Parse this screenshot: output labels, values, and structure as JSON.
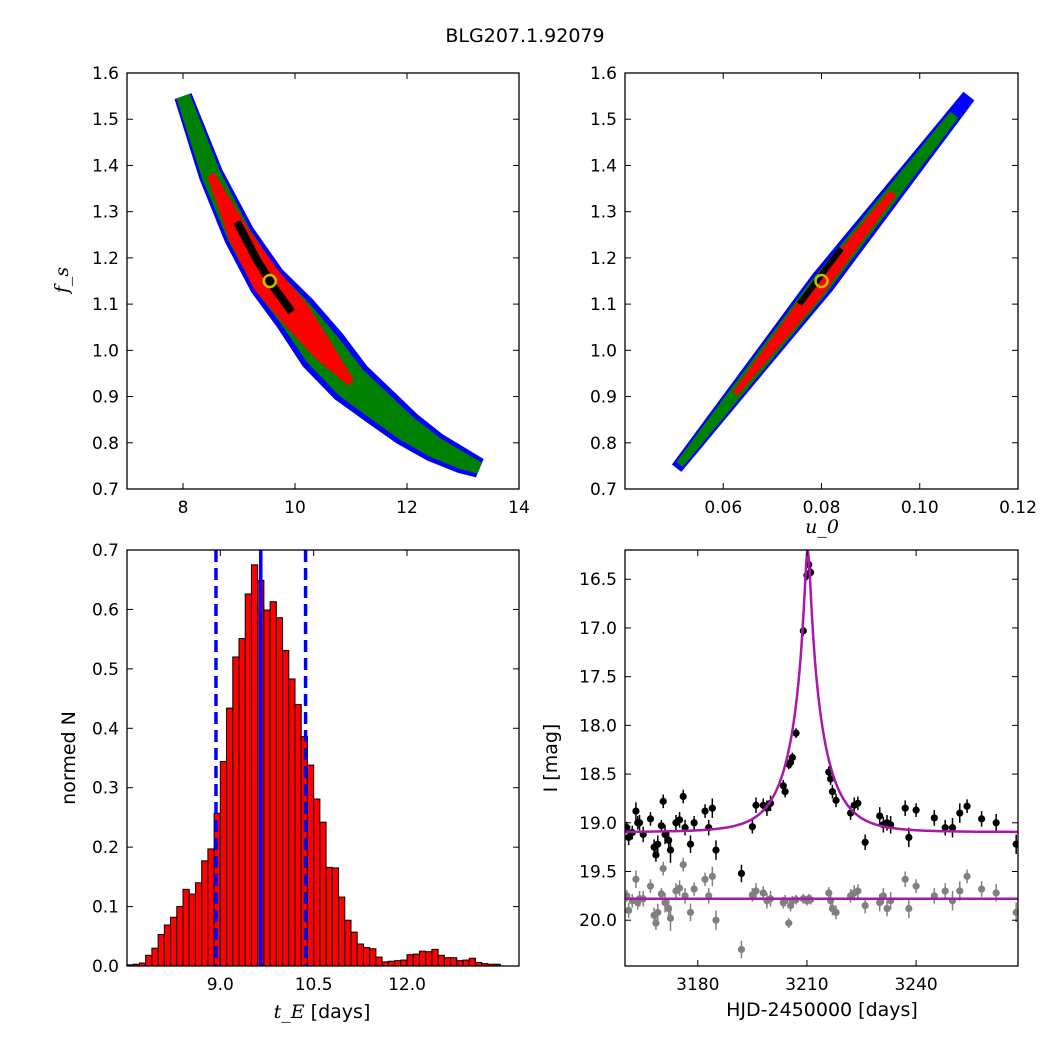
{
  "figure": {
    "title": "BLG207.1.92079"
  },
  "colors": {
    "outer": "#0000ff",
    "mid": "#008000",
    "inner": "#ff0000",
    "core": "#000000",
    "marker": "#bfbf00",
    "bar": "#ff0000",
    "line": "#0000ff",
    "model": "#aa18aa",
    "primary_pts": "#000000",
    "secondary_pts": "#808080"
  },
  "chart_data": [
    {
      "type": "heatmap",
      "name": "posterior tE vs fs",
      "xlabel": "",
      "ylabel": "f_s",
      "xlim": [
        7,
        14
      ],
      "ylim": [
        0.7,
        1.6
      ],
      "xticks": [
        8,
        10,
        12,
        14
      ],
      "yticks": [
        0.7,
        0.8,
        0.9,
        1.0,
        1.1,
        1.2,
        1.3,
        1.4,
        1.5,
        1.6
      ],
      "ytick_labels": [
        "0.7",
        "0.8",
        "0.9",
        "1.0",
        "1.1",
        "1.2",
        "1.3",
        "1.4",
        "1.5",
        "1.6"
      ],
      "ridge": [
        [
          8.0,
          1.55
        ],
        [
          8.5,
          1.38
        ],
        [
          9.0,
          1.25
        ],
        [
          9.5,
          1.15
        ],
        [
          10.0,
          1.08
        ],
        [
          10.5,
          1.0
        ],
        [
          11.0,
          0.93
        ],
        [
          11.5,
          0.88
        ],
        [
          12.0,
          0.83
        ],
        [
          12.5,
          0.79
        ],
        [
          13.0,
          0.76
        ],
        [
          13.3,
          0.745
        ]
      ],
      "best_fit": [
        9.55,
        1.15
      ]
    },
    {
      "type": "heatmap",
      "name": "posterior u0 vs fs",
      "xlabel": "u_0",
      "ylabel": "",
      "xlim": [
        0.04,
        0.12
      ],
      "ylim": [
        0.7,
        1.6
      ],
      "xticks": [
        0.06,
        0.08,
        0.1,
        0.12
      ],
      "xtick_labels": [
        "0.06",
        "0.08",
        "0.10",
        "0.12"
      ],
      "yticks": [
        0.7,
        0.8,
        0.9,
        1.0,
        1.1,
        1.2,
        1.3,
        1.4,
        1.5,
        1.6
      ],
      "ytick_labels": [
        "0.7",
        "0.8",
        "0.9",
        "1.0",
        "1.1",
        "1.2",
        "1.3",
        "1.4",
        "1.5",
        "1.6"
      ],
      "ridge": [
        [
          0.0505,
          0.745
        ],
        [
          0.11,
          1.55
        ]
      ],
      "best_fit": [
        0.08,
        1.15
      ]
    },
    {
      "type": "bar",
      "name": "tE histogram",
      "xlabel": "t_E",
      "xlabel_suffix": " [days]",
      "ylabel": "normed N",
      "xlim": [
        7.5,
        13.8
      ],
      "ylim": [
        0,
        0.7
      ],
      "xticks": [
        9.0,
        10.5,
        12.0
      ],
      "xtick_labels": [
        "9.0",
        "10.5",
        "12.0"
      ],
      "yticks": [
        0.0,
        0.1,
        0.2,
        0.3,
        0.4,
        0.5,
        0.6,
        0.7
      ],
      "ytick_labels": [
        "0.0",
        "0.1",
        "0.2",
        "0.3",
        "0.4",
        "0.5",
        "0.6",
        "0.7"
      ],
      "bin_start": 7.5,
      "bin_width": 0.1,
      "values": [
        0.002,
        0.003,
        0.005,
        0.018,
        0.03,
        0.053,
        0.069,
        0.082,
        0.1,
        0.129,
        0.121,
        0.14,
        0.177,
        0.197,
        0.257,
        0.344,
        0.434,
        0.52,
        0.551,
        0.626,
        0.675,
        0.649,
        0.599,
        0.613,
        0.586,
        0.531,
        0.483,
        0.44,
        0.386,
        0.338,
        0.281,
        0.242,
        0.166,
        0.165,
        0.116,
        0.077,
        0.057,
        0.037,
        0.031,
        0.029,
        0.015,
        0.007,
        0.008,
        0.009,
        0.01,
        0.019,
        0.02,
        0.025,
        0.024,
        0.028,
        0.018,
        0.014,
        0.014,
        0.009,
        0.01,
        0.013,
        0.006,
        0.004,
        0.003,
        0.003
      ],
      "vlines": [
        {
          "x": 8.93,
          "style": "dashed"
        },
        {
          "x": 9.65,
          "style": "solid"
        },
        {
          "x": 10.37,
          "style": "dashed"
        }
      ]
    },
    {
      "type": "scatter",
      "name": "light curve",
      "xlabel": "HJD-2450000 [days]",
      "ylabel": "I [mag]",
      "xlim": [
        3160,
        3268
      ],
      "ylim": [
        20.47,
        16.2
      ],
      "xticks": [
        3180,
        3210,
        3240
      ],
      "xtick_labels": [
        "3180",
        "3210",
        "3240"
      ],
      "yticks": [
        16.5,
        17.0,
        17.5,
        18.0,
        18.5,
        19.0,
        19.5,
        20.0
      ],
      "ytick_labels": [
        "16.5",
        "17.0",
        "17.5",
        "18.0",
        "18.5",
        "19.0",
        "19.5",
        "20.0"
      ],
      "model": {
        "t0": 3210.2,
        "u0": 0.08,
        "tE": 9.55,
        "baseline": 19.095,
        "fs": 1.15,
        "flat_level": 19.78
      },
      "primary": [
        [
          3160.5,
          19.05,
          0.06
        ],
        [
          3161.0,
          19.15,
          0.08
        ],
        [
          3162.0,
          19.1,
          0.07
        ],
        [
          3163.0,
          18.88,
          0.09
        ],
        [
          3163.5,
          19.0,
          0.07
        ],
        [
          3164.0,
          19.0,
          0.08
        ],
        [
          3167.0,
          18.96,
          0.07
        ],
        [
          3168.0,
          19.25,
          0.08
        ],
        [
          3168.5,
          19.33,
          0.07
        ],
        [
          3169.0,
          19.22,
          0.09
        ],
        [
          3170.0,
          19.03,
          0.06
        ],
        [
          3170.5,
          18.78,
          0.07
        ],
        [
          3171.0,
          19.12,
          0.1
        ],
        [
          3172.0,
          19.18,
          0.09
        ],
        [
          3172.5,
          19.28,
          0.13
        ],
        [
          3174.0,
          19.0,
          0.08
        ],
        [
          3175.0,
          18.97,
          0.08
        ],
        [
          3176.0,
          18.73,
          0.07
        ],
        [
          3176.5,
          19.05,
          0.08
        ],
        [
          3178.0,
          19.22,
          0.09
        ],
        [
          3182.0,
          18.88,
          0.07
        ],
        [
          3183.0,
          19.05,
          0.08
        ],
        [
          3184.0,
          18.85,
          0.1
        ],
        [
          3185.0,
          19.28,
          0.1
        ],
        [
          3192.0,
          19.52,
          0.09
        ],
        [
          3195.0,
          19.04,
          0.07
        ],
        [
          3196.0,
          18.82,
          0.08
        ],
        [
          3198.0,
          18.82,
          0.07
        ],
        [
          3199.0,
          18.85,
          0.08
        ],
        [
          3200.0,
          18.8,
          0.08
        ],
        [
          3203.5,
          18.62,
          0.06
        ],
        [
          3204.0,
          18.68,
          0.06
        ],
        [
          3205.0,
          18.4,
          0.05
        ],
        [
          3205.5,
          18.38,
          0.06
        ],
        [
          3206.0,
          18.33,
          0.05
        ],
        [
          3207.0,
          18.08,
          0.05
        ],
        [
          3209.0,
          17.03,
          0.05
        ],
        [
          3210.0,
          16.46,
          0.05
        ],
        [
          3210.5,
          16.35,
          0.05
        ],
        [
          3211.0,
          16.43,
          0.05
        ],
        [
          3216.0,
          18.48,
          0.06
        ],
        [
          3216.5,
          18.55,
          0.06
        ],
        [
          3217.0,
          18.68,
          0.07
        ],
        [
          3218.0,
          18.77,
          0.07
        ],
        [
          3222.0,
          18.9,
          0.07
        ],
        [
          3223.0,
          18.82,
          0.08
        ],
        [
          3224.0,
          18.8,
          0.07
        ],
        [
          3226.0,
          19.2,
          0.08
        ],
        [
          3230.0,
          18.93,
          0.09
        ],
        [
          3231.0,
          19.02,
          0.08
        ],
        [
          3232.0,
          19.0,
          0.08
        ],
        [
          3233.0,
          19.02,
          0.09
        ],
        [
          3237.0,
          18.85,
          0.08
        ],
        [
          3238.0,
          19.15,
          0.1
        ],
        [
          3240.0,
          18.87,
          0.07
        ],
        [
          3248.0,
          19.05,
          0.08
        ],
        [
          3250.0,
          19.05,
          0.1
        ],
        [
          3252.0,
          18.9,
          0.1
        ],
        [
          3254.0,
          18.83,
          0.07
        ],
        [
          3267.5,
          19.22,
          0.1
        ],
        [
          3165.0,
          19.12,
          0.08
        ],
        [
          3179.0,
          19.0,
          0.07
        ],
        [
          3245.0,
          18.95,
          0.08
        ],
        [
          3258.0,
          18.96,
          0.08
        ],
        [
          3262.0,
          19.0,
          0.09
        ]
      ],
      "secondary": [
        [
          3160.5,
          19.75,
          0.06
        ],
        [
          3161.0,
          19.9,
          0.08
        ],
        [
          3162.0,
          19.8,
          0.07
        ],
        [
          3163.0,
          19.58,
          0.09
        ],
        [
          3163.5,
          19.82,
          0.07
        ],
        [
          3164.0,
          19.78,
          0.08
        ],
        [
          3167.0,
          19.65,
          0.07
        ],
        [
          3168.0,
          19.95,
          0.08
        ],
        [
          3168.5,
          20.03,
          0.07
        ],
        [
          3169.0,
          19.92,
          0.09
        ],
        [
          3170.0,
          19.73,
          0.06
        ],
        [
          3170.5,
          19.47,
          0.07
        ],
        [
          3171.0,
          19.82,
          0.1
        ],
        [
          3172.0,
          19.88,
          0.09
        ],
        [
          3172.5,
          19.98,
          0.13
        ],
        [
          3174.0,
          19.7,
          0.08
        ],
        [
          3175.0,
          19.67,
          0.08
        ],
        [
          3176.0,
          19.43,
          0.07
        ],
        [
          3176.5,
          19.75,
          0.08
        ],
        [
          3178.0,
          19.92,
          0.09
        ],
        [
          3182.0,
          19.58,
          0.07
        ],
        [
          3183.0,
          19.75,
          0.08
        ],
        [
          3184.0,
          19.55,
          0.1
        ],
        [
          3185.0,
          20.0,
          0.1
        ],
        [
          3192.0,
          20.3,
          0.09
        ],
        [
          3195.0,
          19.74,
          0.07
        ],
        [
          3196.0,
          19.7,
          0.08
        ],
        [
          3198.0,
          19.72,
          0.07
        ],
        [
          3199.0,
          19.8,
          0.08
        ],
        [
          3200.0,
          19.78,
          0.08
        ],
        [
          3203.5,
          19.82,
          0.06
        ],
        [
          3204.0,
          19.8,
          0.06
        ],
        [
          3205.0,
          20.03,
          0.05
        ],
        [
          3205.5,
          19.85,
          0.06
        ],
        [
          3206.0,
          19.8,
          0.05
        ],
        [
          3207.0,
          19.79,
          0.05
        ],
        [
          3209.0,
          19.78,
          0.05
        ],
        [
          3210.0,
          19.8,
          0.05
        ],
        [
          3210.5,
          19.78,
          0.05
        ],
        [
          3211.0,
          19.79,
          0.05
        ],
        [
          3216.0,
          19.72,
          0.06
        ],
        [
          3216.5,
          19.8,
          0.06
        ],
        [
          3217.0,
          19.88,
          0.07
        ],
        [
          3218.0,
          19.92,
          0.07
        ],
        [
          3222.0,
          19.75,
          0.07
        ],
        [
          3223.0,
          19.72,
          0.08
        ],
        [
          3224.0,
          19.7,
          0.07
        ],
        [
          3226.0,
          19.85,
          0.08
        ],
        [
          3230.0,
          19.82,
          0.09
        ],
        [
          3231.0,
          19.75,
          0.08
        ],
        [
          3232.0,
          19.88,
          0.08
        ],
        [
          3233.0,
          19.8,
          0.09
        ],
        [
          3237.0,
          19.58,
          0.08
        ],
        [
          3238.0,
          19.88,
          0.1
        ],
        [
          3240.0,
          19.65,
          0.07
        ],
        [
          3248.0,
          19.7,
          0.08
        ],
        [
          3250.0,
          19.8,
          0.1
        ],
        [
          3252.0,
          19.7,
          0.1
        ],
        [
          3254.0,
          19.55,
          0.07
        ],
        [
          3267.5,
          19.92,
          0.1
        ],
        [
          3165.0,
          19.78,
          0.08
        ],
        [
          3179.0,
          19.68,
          0.07
        ],
        [
          3245.0,
          19.75,
          0.08
        ],
        [
          3258.0,
          19.68,
          0.08
        ],
        [
          3262.0,
          19.72,
          0.09
        ]
      ]
    }
  ]
}
